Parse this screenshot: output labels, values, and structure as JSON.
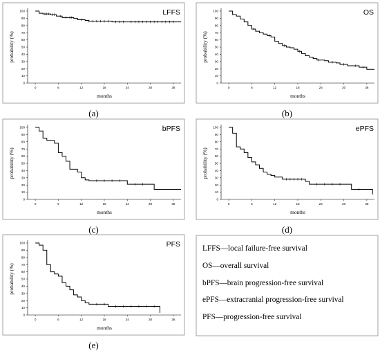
{
  "chart_data": [
    {
      "type": "line",
      "title": "LFFS",
      "xlabel": "months",
      "ylabel": "probability (%)",
      "caption": "(a)",
      "xlim": [
        -2,
        38
      ],
      "ylim": [
        0,
        100
      ],
      "xticks": [
        0,
        6,
        12,
        18,
        24,
        30,
        36
      ],
      "yticks": [
        0,
        10,
        20,
        30,
        40,
        50,
        60,
        70,
        80,
        90,
        100
      ],
      "series": [
        {
          "steps": [
            [
              0,
              100
            ],
            [
              1,
              97
            ],
            [
              2,
              96
            ],
            [
              4,
              95
            ],
            [
              5.5,
              93
            ],
            [
              7,
              91
            ],
            [
              10,
              90
            ],
            [
              11,
              88
            ],
            [
              13,
              87
            ],
            [
              14,
              86
            ],
            [
              20,
              85
            ],
            [
              38,
              85
            ]
          ],
          "censored": [
            2.5,
            3,
            3.5,
            4.5,
            5,
            6.5,
            8,
            9,
            9.5,
            12,
            14,
            15,
            16,
            17,
            18,
            19,
            21,
            22,
            23,
            25,
            26,
            27,
            28,
            29,
            30,
            31,
            32,
            33,
            34,
            35,
            36
          ]
        }
      ]
    },
    {
      "type": "line",
      "title": "OS",
      "xlabel": "months",
      "ylabel": "probability (%)",
      "caption": "(b)",
      "xlim": [
        -2,
        38
      ],
      "ylim": [
        0,
        100
      ],
      "xticks": [
        0,
        6,
        12,
        18,
        24,
        30,
        36
      ],
      "yticks": [
        0,
        10,
        20,
        30,
        40,
        50,
        60,
        70,
        80,
        90,
        100
      ],
      "series": [
        {
          "steps": [
            [
              0,
              100
            ],
            [
              1,
              95
            ],
            [
              2,
              93
            ],
            [
              3,
              89
            ],
            [
              4,
              85
            ],
            [
              5,
              80
            ],
            [
              6,
              75
            ],
            [
              7,
              72
            ],
            [
              8,
              70
            ],
            [
              9,
              68
            ],
            [
              10,
              66
            ],
            [
              11,
              64
            ],
            [
              12,
              58
            ],
            [
              13,
              55
            ],
            [
              14,
              52
            ],
            [
              15,
              50
            ],
            [
              16,
              49
            ],
            [
              17,
              47
            ],
            [
              18,
              44
            ],
            [
              19,
              41
            ],
            [
              20,
              38
            ],
            [
              21,
              36
            ],
            [
              22,
              34
            ],
            [
              23,
              32
            ],
            [
              25,
              31
            ],
            [
              26,
              29
            ],
            [
              28,
              28
            ],
            [
              29,
              26
            ],
            [
              31,
              24
            ],
            [
              34,
              22
            ],
            [
              36,
              19
            ],
            [
              38,
              19
            ]
          ],
          "censored": [
            6.5,
            10.5,
            14.5,
            18.5,
            23.5,
            27,
            30,
            33,
            35
          ]
        }
      ]
    },
    {
      "type": "line",
      "title": "bPFS",
      "xlabel": "months",
      "ylabel": "probability (%)",
      "caption": "(c)",
      "xlim": [
        -2,
        38
      ],
      "ylim": [
        0,
        100
      ],
      "xticks": [
        0,
        6,
        12,
        18,
        24,
        30,
        36
      ],
      "yticks": [
        0,
        10,
        20,
        30,
        40,
        50,
        60,
        70,
        80,
        90,
        100
      ],
      "series": [
        {
          "steps": [
            [
              0,
              100
            ],
            [
              1,
              95
            ],
            [
              2,
              85
            ],
            [
              3,
              82
            ],
            [
              5,
              78
            ],
            [
              6,
              65
            ],
            [
              7,
              60
            ],
            [
              8,
              53
            ],
            [
              9,
              42
            ],
            [
              11,
              38
            ],
            [
              12,
              30
            ],
            [
              13,
              27
            ],
            [
              14,
              26
            ],
            [
              24,
              21
            ],
            [
              31,
              14
            ],
            [
              38,
              14
            ]
          ],
          "censored": [
            16,
            18,
            20,
            22,
            26,
            28
          ]
        }
      ]
    },
    {
      "type": "line",
      "title": "ePFS",
      "xlabel": "months",
      "ylabel": "probability (%)",
      "caption": "(d)",
      "xlim": [
        -2,
        38
      ],
      "ylim": [
        0,
        100
      ],
      "xticks": [
        0,
        6,
        12,
        18,
        24,
        30,
        36
      ],
      "yticks": [
        0,
        10,
        20,
        30,
        40,
        50,
        60,
        70,
        80,
        90,
        100
      ],
      "series": [
        {
          "steps": [
            [
              0,
              100
            ],
            [
              1,
              92
            ],
            [
              2,
              73
            ],
            [
              3,
              70
            ],
            [
              4,
              65
            ],
            [
              5,
              58
            ],
            [
              6,
              52
            ],
            [
              7,
              48
            ],
            [
              8,
              43
            ],
            [
              9,
              38
            ],
            [
              10,
              35
            ],
            [
              11,
              33
            ],
            [
              12,
              31
            ],
            [
              14,
              28
            ],
            [
              20,
              25
            ],
            [
              21,
              21
            ],
            [
              32,
              14
            ],
            [
              37,
              14
            ],
            [
              37.5,
              7
            ]
          ],
          "censored": [
            15,
            16,
            17,
            18,
            19,
            23,
            25,
            27,
            29,
            34
          ]
        }
      ]
    },
    {
      "type": "line",
      "title": "PFS",
      "xlabel": "months",
      "ylabel": "probability (%)",
      "caption": "(e)",
      "xlim": [
        -2,
        38
      ],
      "ylim": [
        0,
        100
      ],
      "xticks": [
        0,
        6,
        12,
        18,
        24,
        30,
        36
      ],
      "yticks": [
        0,
        10,
        20,
        30,
        40,
        50,
        60,
        70,
        80,
        90,
        100
      ],
      "series": [
        {
          "steps": [
            [
              0,
              100
            ],
            [
              1,
              97
            ],
            [
              2,
              90
            ],
            [
              3,
              70
            ],
            [
              4,
              60
            ],
            [
              5,
              57
            ],
            [
              6,
              54
            ],
            [
              7,
              45
            ],
            [
              8,
              40
            ],
            [
              9,
              35
            ],
            [
              10,
              28
            ],
            [
              11,
              25
            ],
            [
              12,
              20
            ],
            [
              13,
              17
            ],
            [
              14,
              15
            ],
            [
              19,
              12
            ],
            [
              32,
              12
            ],
            [
              32.5,
              3
            ]
          ],
          "censored": [
            16,
            18,
            21,
            23,
            25,
            27,
            29,
            31
          ]
        }
      ]
    }
  ],
  "legend": {
    "lines": [
      "LFFS—local failure-free survival",
      "OS—overall survival",
      "bPFS—brain progression-free survival",
      "ePFS—extracranial progression-free survival",
      "PFS—progression-free survival"
    ]
  }
}
